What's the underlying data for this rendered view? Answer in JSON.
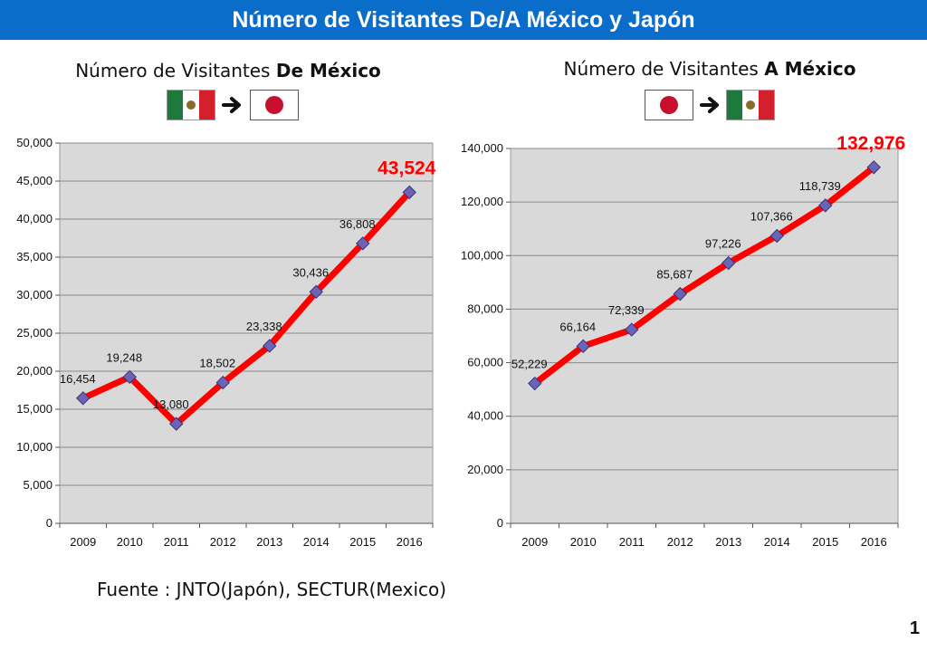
{
  "banner": {
    "title": "Número de Visitantes De/A México y Japón"
  },
  "left_panel": {
    "title_prefix": "Número de Visitantes ",
    "title_bold": "De México",
    "flags": [
      "mexico-flag",
      "arrow-right-icon",
      "japan-flag"
    ]
  },
  "right_panel": {
    "title_prefix": "Número de Visitantes ",
    "title_bold": "A México",
    "flags": [
      "japan-flag",
      "arrow-right-icon",
      "mexico-flag"
    ]
  },
  "colors": {
    "line": "#ff0000",
    "marker": "#6b63b5",
    "plot_bg": "#d9d9d9",
    "banner": "#0a6dc9"
  },
  "chart_data": [
    {
      "type": "line",
      "title": "",
      "xlabel": "",
      "ylabel": "",
      "categories": [
        "2009",
        "2010",
        "2011",
        "2012",
        "2013",
        "2014",
        "2015",
        "2016"
      ],
      "values": [
        16454,
        19248,
        13080,
        18502,
        23338,
        30436,
        36808,
        43524
      ],
      "labels": [
        "16,454",
        "19,248",
        "13,080",
        "18,502",
        "23,338",
        "30,436",
        "36,808",
        "43,524"
      ],
      "ylim": [
        0,
        50000
      ],
      "yticks": [
        0,
        5000,
        10000,
        15000,
        20000,
        25000,
        30000,
        35000,
        40000,
        45000,
        50000
      ],
      "ytick_labels": [
        "0",
        "5,000",
        "10,000",
        "15,000",
        "20,000",
        "25,000",
        "30,000",
        "35,000",
        "40,000",
        "45,000",
        "50,000"
      ],
      "grid": true,
      "legend": "none",
      "highlight_last": true
    },
    {
      "type": "line",
      "title": "",
      "xlabel": "",
      "ylabel": "",
      "categories": [
        "2009",
        "2010",
        "2011",
        "2012",
        "2013",
        "2014",
        "2015",
        "2016"
      ],
      "values": [
        52229,
        66164,
        72339,
        85687,
        97226,
        107366,
        118739,
        132976
      ],
      "labels": [
        "52,229",
        "66,164",
        "72,339",
        "85,687",
        "97,226",
        "107,366",
        "118,739",
        "132,976"
      ],
      "ylim": [
        0,
        140000
      ],
      "yticks": [
        0,
        20000,
        40000,
        60000,
        80000,
        100000,
        120000,
        140000
      ],
      "ytick_labels": [
        "0",
        "20,000",
        "40,000",
        "60,000",
        "80,000",
        "100,000",
        "120,000",
        "140,000"
      ],
      "grid": true,
      "legend": "none",
      "highlight_last": true
    }
  ],
  "footer": {
    "source": "Fuente : JNTO(Japón), SECTUR(Mexico)",
    "page_number": "1"
  }
}
